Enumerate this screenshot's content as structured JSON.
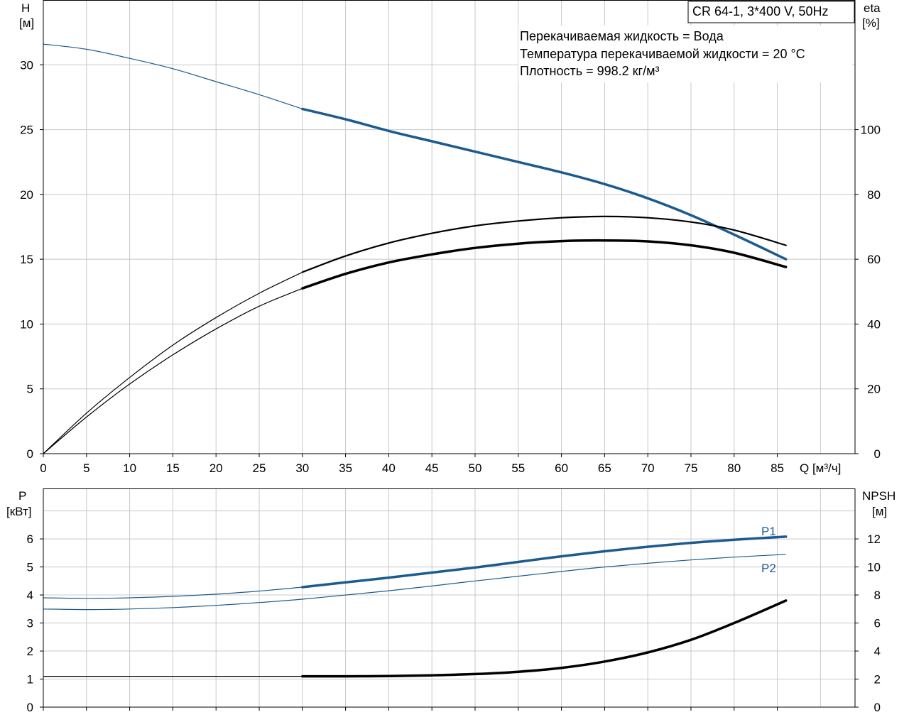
{
  "chart_data": {
    "type": "line",
    "pump_label": "CR 64-1, 3*400 V, 50Hz",
    "info_lines": [
      "Перекачиваемая жидкость = Вода",
      "Температура перекачиваемой жидкости = 20 °C",
      "Плотность = 998.2 кг/м³"
    ],
    "colors": {
      "blue": "#1d5b8f",
      "black": "#000000",
      "grid": "#c8c8c8"
    },
    "x_axis": {
      "label": "Q [м³/ч]",
      "range": [
        0,
        94
      ],
      "ticks": [
        0,
        5,
        10,
        15,
        20,
        25,
        30,
        35,
        40,
        45,
        50,
        55,
        60,
        65,
        70,
        75,
        80,
        85
      ]
    },
    "top": {
      "left_axis": {
        "label_line1": "H",
        "label_line2": "[м]",
        "range": [
          0,
          35
        ],
        "ticks": [
          0,
          5,
          10,
          15,
          20,
          25,
          30
        ]
      },
      "right_axis": {
        "label_line1": "eta",
        "label_line2": "[%]",
        "range": [
          0,
          140
        ],
        "ticks": [
          0,
          20,
          40,
          60,
          80,
          100
        ]
      },
      "series": [
        {
          "key": "head",
          "axis": "left",
          "color": "blue",
          "thin_until": 30,
          "thick_width": 3.5,
          "x": [
            0,
            5,
            10,
            15,
            20,
            25,
            30,
            35,
            40,
            45,
            50,
            55,
            60,
            65,
            70,
            75,
            80,
            86
          ],
          "y": [
            31.6,
            31.2,
            30.5,
            29.7,
            28.7,
            27.7,
            26.6,
            25.8,
            24.9,
            24.1,
            23.3,
            22.5,
            21.7,
            20.8,
            19.7,
            18.4,
            16.9,
            15.0
          ]
        },
        {
          "key": "eta",
          "axis": "right",
          "color": "black",
          "thin_until": 30,
          "thick_width": 2.2,
          "x": [
            0,
            5,
            10,
            15,
            20,
            25,
            30,
            35,
            40,
            45,
            50,
            55,
            60,
            65,
            70,
            75,
            80,
            86
          ],
          "y": [
            0,
            12.5,
            23.5,
            33.5,
            42,
            49.5,
            56,
            61,
            65,
            68,
            70.3,
            71.8,
            72.8,
            73.2,
            72.8,
            71.5,
            69,
            64.3
          ]
        },
        {
          "key": "eta_pump",
          "axis": "right",
          "color": "black",
          "thin_until": 30,
          "thick_width": 3.5,
          "x": [
            0,
            5,
            10,
            15,
            20,
            25,
            30,
            35,
            40,
            45,
            50,
            55,
            60,
            65,
            70,
            75,
            80,
            86
          ],
          "y": [
            0,
            11.3,
            21.5,
            30.5,
            38.5,
            45.5,
            51,
            55.5,
            59,
            61.5,
            63.5,
            64.8,
            65.6,
            65.8,
            65.5,
            64.3,
            62,
            57.6
          ]
        }
      ]
    },
    "bottom": {
      "left_axis": {
        "label_line1": "P",
        "label_line2": "[кВт]",
        "range": [
          0,
          7.8
        ],
        "ticks": [
          0,
          1,
          2,
          3,
          4,
          5,
          6
        ]
      },
      "right_axis": {
        "label_line1": "NPSH",
        "label_line2": "[м]",
        "range": [
          0,
          15.6
        ],
        "ticks": [
          0,
          2,
          4,
          6,
          8,
          10,
          12
        ]
      },
      "series": [
        {
          "key": "p1",
          "name": "P1",
          "axis": "left",
          "color": "blue",
          "thin_until": 30,
          "thick_width": 3.5,
          "x": [
            0,
            5,
            10,
            15,
            20,
            25,
            30,
            35,
            40,
            45,
            50,
            55,
            60,
            65,
            70,
            75,
            80,
            86
          ],
          "y": [
            3.9,
            3.88,
            3.9,
            3.95,
            4.03,
            4.14,
            4.28,
            4.45,
            4.62,
            4.8,
            4.98,
            5.18,
            5.38,
            5.56,
            5.72,
            5.86,
            5.97,
            6.08
          ]
        },
        {
          "key": "p2",
          "name": "P2",
          "axis": "left",
          "color": "blue",
          "thin_until": 86,
          "thick_width": 2,
          "x": [
            0,
            5,
            10,
            15,
            20,
            25,
            30,
            35,
            40,
            45,
            50,
            55,
            60,
            65,
            70,
            75,
            80,
            86
          ],
          "y": [
            3.5,
            3.48,
            3.5,
            3.55,
            3.63,
            3.73,
            3.85,
            4.0,
            4.15,
            4.32,
            4.5,
            4.67,
            4.84,
            5.0,
            5.13,
            5.25,
            5.35,
            5.45
          ]
        },
        {
          "key": "npsh",
          "axis": "right",
          "color": "black",
          "thin_until": 30,
          "thick_width": 3.5,
          "x": [
            0,
            5,
            10,
            15,
            20,
            25,
            30,
            35,
            40,
            45,
            50,
            55,
            60,
            65,
            70,
            75,
            80,
            86
          ],
          "y": [
            2.2,
            2.2,
            2.2,
            2.2,
            2.2,
            2.2,
            2.2,
            2.2,
            2.22,
            2.27,
            2.36,
            2.52,
            2.8,
            3.25,
            3.9,
            4.8,
            6.0,
            7.6
          ]
        }
      ]
    }
  }
}
